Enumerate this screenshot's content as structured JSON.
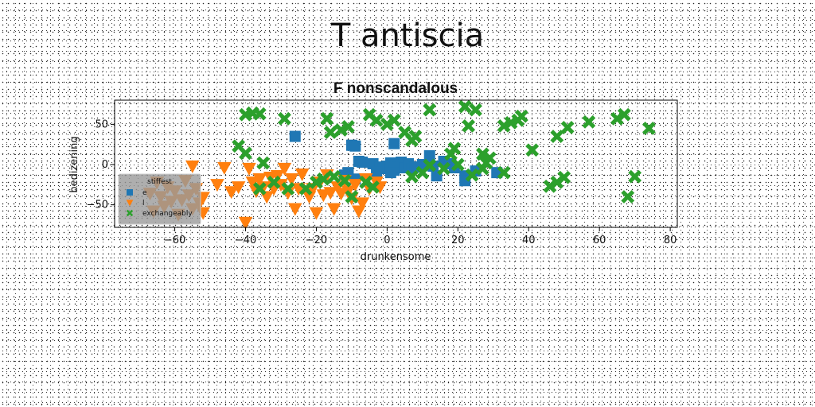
{
  "suptitle": "T antiscia",
  "chart_data": {
    "type": "scatter",
    "title": "F nonscandalous",
    "xlabel": "drunkensome",
    "ylabel": "bedizening",
    "xlim": [
      -77,
      82
    ],
    "ylim": [
      -78,
      80
    ],
    "xticks": [
      -60,
      -40,
      -20,
      0,
      20,
      40,
      60,
      80
    ],
    "yticks": [
      -50,
      0,
      50
    ],
    "grid": false,
    "legend": {
      "title": "stiffest",
      "placement": "lower-left",
      "entries": [
        "e",
        "l",
        "exchangeably"
      ]
    },
    "series": [
      {
        "name": "e",
        "marker": "square",
        "color": "#1f77b4",
        "points": [
          [
            -26,
            35
          ],
          [
            -10,
            24
          ],
          [
            -9,
            23
          ],
          [
            -11,
            -10
          ],
          [
            -8,
            4
          ],
          [
            -7,
            3
          ],
          [
            -4,
            1
          ],
          [
            -2,
            -3
          ],
          [
            -1,
            -5
          ],
          [
            0,
            -2
          ],
          [
            1,
            2
          ],
          [
            2,
            26
          ],
          [
            2,
            -7
          ],
          [
            3,
            -3
          ],
          [
            4,
            3
          ],
          [
            5,
            -4
          ],
          [
            6,
            1
          ],
          [
            7,
            -5
          ],
          [
            8,
            -3
          ],
          [
            10,
            0
          ],
          [
            12,
            11
          ],
          [
            13,
            -2
          ],
          [
            14,
            -14
          ],
          [
            16,
            4
          ],
          [
            18,
            1
          ],
          [
            19,
            -4
          ],
          [
            22,
            -14
          ],
          [
            22,
            -20
          ],
          [
            25,
            -8
          ],
          [
            31,
            -10
          ],
          [
            -12,
            -13
          ],
          [
            -9,
            -18
          ],
          [
            -3,
            -9
          ],
          [
            1,
            -10
          ]
        ]
      },
      {
        "name": "l",
        "marker": "triangle_down",
        "color": "#ff7f0e",
        "points": [
          [
            -67,
            -36
          ],
          [
            -66,
            -58
          ],
          [
            -65,
            -22
          ],
          [
            -64,
            -40
          ],
          [
            -63,
            -52
          ],
          [
            -62,
            -28
          ],
          [
            -61,
            -46
          ],
          [
            -60,
            -33
          ],
          [
            -59,
            -62
          ],
          [
            -58,
            -44
          ],
          [
            -57,
            -20
          ],
          [
            -56,
            -38
          ],
          [
            -55,
            -2
          ],
          [
            -55,
            -55
          ],
          [
            -54,
            -30
          ],
          [
            -53,
            -48
          ],
          [
            -52,
            -41
          ],
          [
            -52,
            -60
          ],
          [
            -48,
            -25
          ],
          [
            -46,
            -4
          ],
          [
            -44,
            -34
          ],
          [
            -42,
            -28
          ],
          [
            -40,
            -72
          ],
          [
            -39,
            -5
          ],
          [
            -38,
            -22
          ],
          [
            -37,
            -33
          ],
          [
            -36,
            -18
          ],
          [
            -35,
            -28
          ],
          [
            -34,
            -40
          ],
          [
            -33,
            -16
          ],
          [
            -32,
            -30
          ],
          [
            -31,
            -14
          ],
          [
            -30,
            -25
          ],
          [
            -29,
            -5
          ],
          [
            -28,
            -35
          ],
          [
            -27,
            -18
          ],
          [
            -26,
            -55
          ],
          [
            -25,
            -30
          ],
          [
            -24,
            -12
          ],
          [
            -22,
            -40
          ],
          [
            -21,
            -30
          ],
          [
            -20,
            -60
          ],
          [
            -19,
            -22
          ],
          [
            -18,
            -38
          ],
          [
            -17,
            -13
          ],
          [
            -16,
            -35
          ],
          [
            -15,
            -55
          ],
          [
            -14,
            -28
          ],
          [
            -13,
            -36
          ],
          [
            -12,
            -20
          ],
          [
            -11,
            -33
          ],
          [
            -10,
            -42
          ],
          [
            -9,
            -25
          ],
          [
            -8,
            -58
          ],
          [
            -7,
            -48
          ],
          [
            -6,
            -18
          ],
          [
            -5,
            -30
          ],
          [
            -3,
            -22
          ],
          [
            -2,
            -28
          ]
        ]
      },
      {
        "name": "exchangeably",
        "marker": "x_filled",
        "color": "#2ca02c",
        "points": [
          [
            -40,
            62
          ],
          [
            -38,
            64
          ],
          [
            -36,
            63
          ],
          [
            -29,
            57
          ],
          [
            -17,
            57
          ],
          [
            -16,
            40
          ],
          [
            -13,
            43
          ],
          [
            -11,
            47
          ],
          [
            -5,
            62
          ],
          [
            -3,
            55
          ],
          [
            0,
            50
          ],
          [
            2,
            55
          ],
          [
            5,
            40
          ],
          [
            7,
            30
          ],
          [
            8,
            35
          ],
          [
            12,
            68
          ],
          [
            19,
            20
          ],
          [
            22,
            72
          ],
          [
            23,
            48
          ],
          [
            25,
            68
          ],
          [
            27,
            13
          ],
          [
            28,
            2
          ],
          [
            33,
            48
          ],
          [
            35,
            52
          ],
          [
            37,
            55
          ],
          [
            38,
            60
          ],
          [
            41,
            18
          ],
          [
            48,
            35
          ],
          [
            51,
            46
          ],
          [
            57,
            53
          ],
          [
            65,
            57
          ],
          [
            67,
            62
          ],
          [
            74,
            45
          ],
          [
            -42,
            23
          ],
          [
            -40,
            14
          ],
          [
            -36,
            -30
          ],
          [
            -32,
            -22
          ],
          [
            -28,
            -30
          ],
          [
            -23,
            -30
          ],
          [
            -20,
            -22
          ],
          [
            -18,
            -18
          ],
          [
            -15,
            -15
          ],
          [
            -12,
            -20
          ],
          [
            -10,
            -40
          ],
          [
            -6,
            -22
          ],
          [
            -4,
            -28
          ],
          [
            7,
            -15
          ],
          [
            10,
            -10
          ],
          [
            12,
            -1
          ],
          [
            16,
            -5
          ],
          [
            18,
            13
          ],
          [
            20,
            0
          ],
          [
            24,
            -13
          ],
          [
            27,
            -5
          ],
          [
            29,
            8
          ],
          [
            33,
            -10
          ],
          [
            46,
            -27
          ],
          [
            48,
            -22
          ],
          [
            50,
            -16
          ],
          [
            68,
            -40
          ],
          [
            70,
            -15
          ],
          [
            -35,
            2
          ]
        ]
      }
    ]
  }
}
